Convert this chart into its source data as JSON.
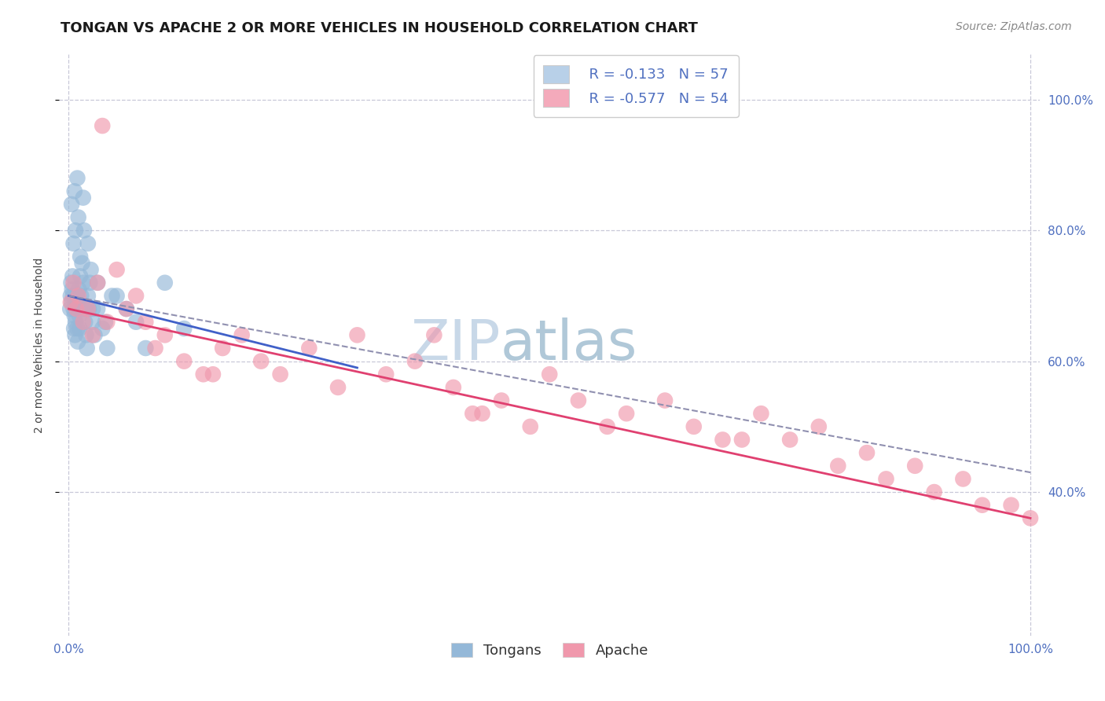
{
  "title": "TONGAN VS APACHE 2 OR MORE VEHICLES IN HOUSEHOLD CORRELATION CHART",
  "source": "Source: ZipAtlas.com",
  "ylabel": "2 or more Vehicles in Household",
  "xlim": [
    -1.0,
    101.0
  ],
  "ylim": [
    18.0,
    107.0
  ],
  "x_ticks": [
    0.0,
    100.0
  ],
  "y_ticks": [
    40.0,
    60.0,
    80.0,
    100.0
  ],
  "x_tick_labels": [
    "0.0%",
    "100.0%"
  ],
  "y_tick_labels": [
    "40.0%",
    "60.0%",
    "80.0%",
    "100.0%"
  ],
  "watermark_zip": "ZIP",
  "watermark_atlas": "atlas",
  "legend_entries": [
    {
      "label": "Tongans",
      "R": -0.133,
      "N": 57,
      "color": "#b8d0e8"
    },
    {
      "label": "Apache",
      "R": -0.577,
      "N": 54,
      "color": "#f4aabb"
    }
  ],
  "tongan_x": [
    0.15,
    0.2,
    0.25,
    0.3,
    0.35,
    0.4,
    0.45,
    0.5,
    0.55,
    0.6,
    0.65,
    0.7,
    0.8,
    0.85,
    0.9,
    0.95,
    1.0,
    1.05,
    1.1,
    1.15,
    1.2,
    1.3,
    1.4,
    1.5,
    1.6,
    1.7,
    1.8,
    1.9,
    2.0,
    2.1,
    2.2,
    2.3,
    2.5,
    2.7,
    3.0,
    3.5,
    4.0,
    5.0,
    6.0,
    8.0,
    10.0,
    12.0,
    0.5,
    0.7,
    1.0,
    1.5,
    2.0,
    3.0,
    4.5,
    7.0,
    0.3,
    0.6,
    0.9,
    1.2,
    1.6,
    2.5,
    3.8
  ],
  "tongan_y": [
    68,
    70,
    72,
    69,
    71,
    73,
    70,
    68,
    65,
    67,
    64,
    66,
    68,
    70,
    65,
    63,
    69,
    71,
    67,
    65,
    73,
    70,
    75,
    72,
    68,
    66,
    64,
    62,
    70,
    68,
    72,
    74,
    66,
    64,
    68,
    65,
    62,
    70,
    68,
    62,
    72,
    65,
    78,
    80,
    82,
    85,
    78,
    72,
    70,
    66,
    84,
    86,
    88,
    76,
    80,
    68,
    66
  ],
  "apache_x": [
    0.2,
    0.5,
    0.8,
    1.0,
    1.5,
    2.0,
    2.5,
    3.0,
    4.0,
    5.0,
    6.0,
    7.0,
    8.0,
    9.0,
    10.0,
    12.0,
    14.0,
    16.0,
    18.0,
    20.0,
    22.0,
    25.0,
    28.0,
    30.0,
    33.0,
    36.0,
    38.0,
    40.0,
    43.0,
    45.0,
    48.0,
    50.0,
    53.0,
    56.0,
    58.0,
    62.0,
    65.0,
    68.0,
    72.0,
    75.0,
    78.0,
    80.0,
    83.0,
    85.0,
    88.0,
    90.0,
    93.0,
    95.0,
    98.0,
    100.0,
    3.5,
    15.0,
    42.0,
    70.0
  ],
  "apache_y": [
    69,
    72,
    68,
    70,
    66,
    68,
    64,
    72,
    66,
    74,
    68,
    70,
    66,
    62,
    64,
    60,
    58,
    62,
    64,
    60,
    58,
    62,
    56,
    64,
    58,
    60,
    64,
    56,
    52,
    54,
    50,
    58,
    54,
    50,
    52,
    54,
    50,
    48,
    52,
    48,
    50,
    44,
    46,
    42,
    44,
    40,
    42,
    38,
    38,
    36,
    96,
    58,
    52,
    48
  ],
  "blue_line_x0": 0.0,
  "blue_line_y0": 70.0,
  "blue_line_x1": 30.0,
  "blue_line_y1": 59.0,
  "pink_line_x0": 0.0,
  "pink_line_y0": 68.0,
  "pink_line_x1": 100.0,
  "pink_line_y1": 36.0,
  "gray_line_x0": 0.0,
  "gray_line_y0": 70.0,
  "gray_line_x1": 100.0,
  "gray_line_y1": 43.0,
  "blue_line_color": "#4060c8",
  "pink_line_color": "#e04070",
  "gray_line_color": "#9090b0",
  "dot_blue": "#94b8d8",
  "dot_pink": "#f098ac",
  "background_color": "#ffffff",
  "grid_color": "#c8c8d8",
  "title_fontsize": 13,
  "axis_label_fontsize": 10,
  "tick_fontsize": 11,
  "legend_fontsize": 13,
  "source_fontsize": 10,
  "watermark_fontsize_zip": 52,
  "watermark_fontsize_atlas": 52,
  "watermark_color_zip": "#c8d8e8",
  "watermark_color_atlas": "#b0c8d8",
  "tick_color": "#5070c0"
}
